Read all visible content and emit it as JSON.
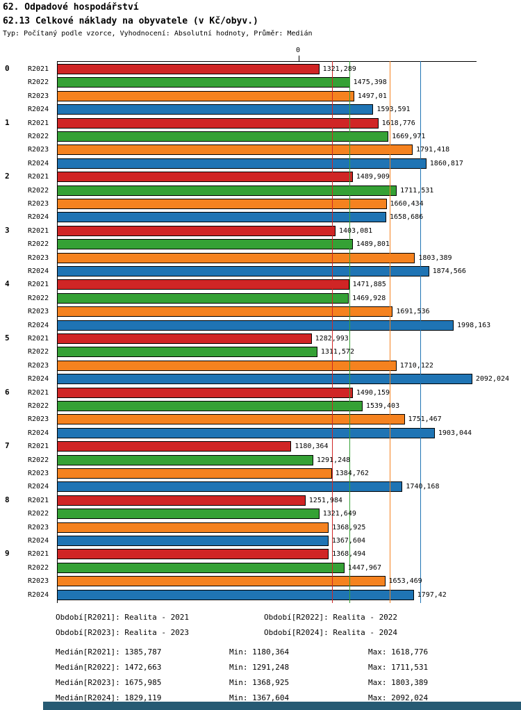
{
  "title_line1": "62. Odpadové hospodářství",
  "title_line2": "62.13 Celkové náklady na obyvatele (v Kč/obyv.)",
  "subtitle": "Typ: Počítaný podle vzorce, Vyhodnocení: Absolutní hodnoty, Průměr: Medián",
  "axis": {
    "zero_label": "0"
  },
  "colors": {
    "background": "#ffffff",
    "axis": "#000000",
    "bottom_bar": "#265a73"
  },
  "chart_data": {
    "type": "bar",
    "orientation": "horizontal",
    "title": "62.13 Celkové náklady na obyvatele (v Kč/obyv.)",
    "xlabel": "",
    "ylabel": "",
    "xlim": [
      0,
      2110
    ],
    "legend_position": "bottom",
    "grid": "median-lines-per-series",
    "categories": [
      "0",
      "1",
      "2",
      "3",
      "4",
      "5",
      "6",
      "7",
      "8",
      "9"
    ],
    "series": [
      {
        "name": "R2021",
        "color": "#d02525",
        "median": 1385.787,
        "min": 1180.364,
        "max": 1618.776,
        "values": [
          1321.289,
          1618.776,
          1489.909,
          1403.081,
          1471.885,
          1282.993,
          1490.159,
          1180.364,
          1251.984,
          1368.494
        ],
        "value_labels": [
          "1321,289",
          "1618,776",
          "1489,909",
          "1403,081",
          "1471,885",
          "1282,993",
          "1490,159",
          "1180,364",
          "1251,984",
          "1368,494"
        ]
      },
      {
        "name": "R2022",
        "color": "#35a135",
        "median": 1472.663,
        "min": 1291.248,
        "max": 1711.531,
        "values": [
          1475.398,
          1669.971,
          1711.531,
          1489.801,
          1469.928,
          1311.572,
          1539.403,
          1291.248,
          1321.649,
          1447.967
        ],
        "value_labels": [
          "1475,398",
          "1669,971",
          "1711,531",
          "1489,801",
          "1469,928",
          "1311,572",
          "1539,403",
          "1291,248",
          "1321,649",
          "1447,967"
        ]
      },
      {
        "name": "R2023",
        "color": "#f5821f",
        "median": 1675.985,
        "min": 1368.925,
        "max": 1803.389,
        "values": [
          1497.01,
          1791.418,
          1660.434,
          1803.389,
          1691.536,
          1710.122,
          1751.467,
          1384.762,
          1368.925,
          1653.469
        ],
        "value_labels": [
          "1497,01",
          "1791,418",
          "1660,434",
          "1803,389",
          "1691,536",
          "1710,122",
          "1751,467",
          "1384,762",
          "1368,925",
          "1653,469"
        ]
      },
      {
        "name": "R2024",
        "color": "#1f74b4",
        "median": 1829.119,
        "min": 1367.604,
        "max": 2092.024,
        "values": [
          1593.591,
          1860.817,
          1658.686,
          1874.566,
          1998.163,
          2092.024,
          1903.044,
          1740.168,
          1367.604,
          1797.42
        ],
        "value_labels": [
          "1593,591",
          "1860,817",
          "1658,686",
          "1874,566",
          "1998,163",
          "2092,024",
          "1903,044",
          "1740,168",
          "1367,604",
          "1797,42"
        ]
      }
    ]
  },
  "legend_rows": [
    [
      "Období[R2021]: Realita - 2021",
      "Období[R2022]: Realita - 2022"
    ],
    [
      "Období[R2023]: Realita - 2023",
      "Období[R2024]: Realita - 2024"
    ]
  ],
  "stats_rows": [
    [
      "Medián[R2021]: 1385,787",
      "Min: 1180,364",
      "Max: 1618,776"
    ],
    [
      "Medián[R2022]: 1472,663",
      "Min: 1291,248",
      "Max: 1711,531"
    ],
    [
      "Medián[R2023]: 1675,985",
      "Min: 1368,925",
      "Max: 1803,389"
    ],
    [
      "Medián[R2024]: 1829,119",
      "Min: 1367,604",
      "Max: 2092,024"
    ]
  ]
}
